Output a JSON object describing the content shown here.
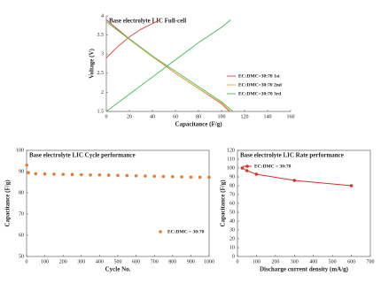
{
  "chart_data": [
    {
      "type": "line",
      "title": "Base electrolyte LIC Full-cell",
      "xlabel": "Capacitance (F/g)",
      "ylabel": "Voltage (V)",
      "xlim": [
        0,
        160
      ],
      "xticks": [
        0,
        20,
        40,
        60,
        80,
        100,
        120,
        140,
        160
      ],
      "ylim": [
        1.5,
        4
      ],
      "yticks": [
        1.5,
        2,
        2.5,
        3,
        3.5,
        4
      ],
      "legend": "right",
      "box": false,
      "series": [
        {
          "name": "EC:DMC=30:70 1st",
          "color": "#e0504a",
          "markers": false,
          "line": true,
          "x": [
            0,
            10,
            20,
            30,
            40,
            47,
            null,
            0,
            20,
            40,
            60,
            80,
            100,
            107
          ],
          "values": [
            2.9,
            3.2,
            3.45,
            3.65,
            3.8,
            3.9,
            null,
            3.9,
            3.4,
            2.95,
            2.5,
            2.1,
            1.7,
            1.5
          ]
        },
        {
          "name": "EC:DMC=30:70 2nd",
          "color": "#f2b13a",
          "markers": false,
          "line": true,
          "x": [
            0,
            20,
            40,
            60,
            80,
            100,
            108
          ],
          "values": [
            3.85,
            3.38,
            2.93,
            2.5,
            2.1,
            1.72,
            1.5
          ]
        },
        {
          "name": "EC:DMC=30:70 3rd",
          "color": "#4fc26a",
          "markers": false,
          "line": true,
          "x": [
            0,
            20,
            40,
            60,
            80,
            100,
            108,
            null,
            0,
            20,
            40,
            60,
            80,
            100,
            110
          ],
          "values": [
            1.5,
            1.95,
            2.4,
            2.85,
            3.3,
            3.7,
            3.9,
            null,
            3.85,
            3.4,
            2.95,
            2.55,
            2.15,
            1.75,
            1.5
          ]
        }
      ]
    },
    {
      "type": "scatter",
      "title": "Base electrolyte LIC Cycle performance",
      "xlabel": "Cycle No.",
      "ylabel": "Capacitance (F/g)",
      "xlim": [
        0,
        1000
      ],
      "xticks": [
        0,
        100,
        200,
        300,
        400,
        500,
        600,
        700,
        800,
        900,
        1000
      ],
      "ylim": [
        50,
        100
      ],
      "yticks": [
        50,
        60,
        70,
        80,
        90,
        100
      ],
      "legend": "lower right",
      "box": true,
      "series": [
        {
          "name": "EC:DMC = 30:70",
          "color": "#ec7a2c",
          "markers": true,
          "line": false,
          "x": [
            1,
            10,
            50,
            100,
            150,
            200,
            250,
            300,
            350,
            400,
            450,
            500,
            550,
            600,
            650,
            700,
            750,
            800,
            850,
            900,
            950,
            1000
          ],
          "values": [
            93,
            89.5,
            89,
            88.9,
            88.8,
            88.7,
            88.6,
            88.5,
            88.4,
            88.4,
            88.3,
            88.2,
            88.1,
            88,
            87.9,
            87.8,
            87.7,
            87.6,
            87.5,
            87.4,
            87.3,
            87.3
          ]
        }
      ]
    },
    {
      "type": "line",
      "title": "Base electrolyte LIC Rate performance",
      "xlabel": "Discharge current density (mA/g)",
      "ylabel": "Capacitance (F/g)",
      "xlim": [
        0,
        700
      ],
      "xticks": [
        0,
        100,
        200,
        300,
        400,
        500,
        600,
        700
      ],
      "ylim": [
        0,
        120
      ],
      "yticks": [
        0,
        10,
        20,
        30,
        40,
        50,
        60,
        70,
        80,
        90,
        100,
        110,
        120
      ],
      "legend": "upper left",
      "box": true,
      "series": [
        {
          "name": "EC:DMC = 30:70",
          "color": "#d9302c",
          "markers": true,
          "line": true,
          "x": [
            25,
            50,
            100,
            300,
            600
          ],
          "values": [
            100,
            97,
            93,
            86,
            80
          ]
        }
      ]
    }
  ]
}
